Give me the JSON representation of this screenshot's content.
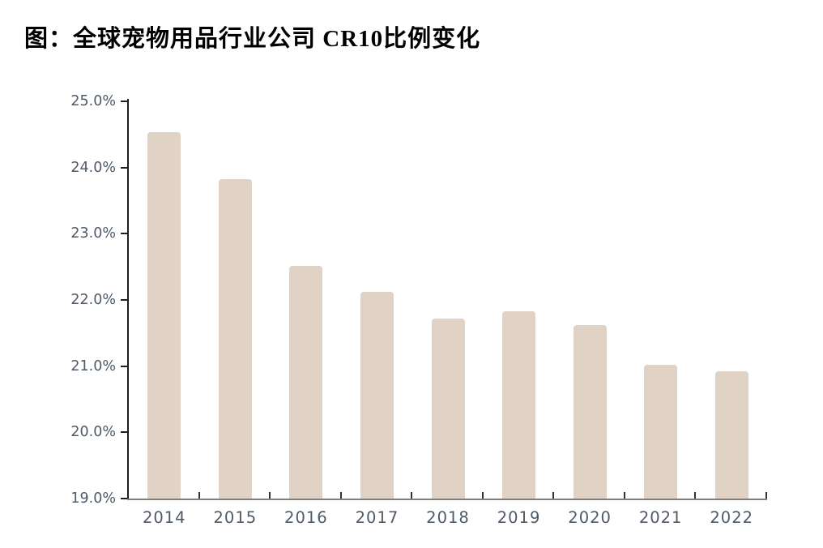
{
  "title": "图：全球宠物用品行业公司 CR10比例变化",
  "chart_data": {
    "type": "bar",
    "title": "图：全球宠物用品行业公司 CR10比例变化",
    "categories": [
      "2014",
      "2015",
      "2016",
      "2017",
      "2018",
      "2019",
      "2020",
      "2021",
      "2022"
    ],
    "values": [
      24.53,
      23.83,
      22.52,
      22.12,
      21.72,
      21.83,
      21.62,
      21.02,
      20.92
    ],
    "xlabel": "",
    "ylabel": "",
    "ylim": [
      19.0,
      25.0
    ],
    "ytick_labels": [
      "25.0%",
      "24.0%",
      "23.0%",
      "22.0%",
      "21.0%",
      "20.0%",
      "19.0%"
    ],
    "ytick_values": [
      25.0,
      24.0,
      23.0,
      22.0,
      21.0,
      20.0,
      19.0
    ],
    "grid": false,
    "legend": null,
    "bar_color": "#e1d2c6",
    "y_axis_color": "#1f1f1f",
    "x_axis_color": "#808080",
    "tick_label_color": "#4e5a68",
    "title_color": "#000000"
  }
}
